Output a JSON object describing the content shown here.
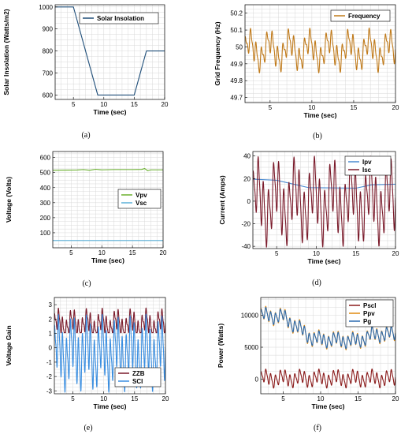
{
  "chart_data": [
    {
      "id": "a",
      "type": "line",
      "caption": "(a)",
      "xlabel": "Time (sec)",
      "ylabel": "Solar Insolation (Watts/m2)",
      "xlim": [
        2,
        20
      ],
      "ylim": [
        580,
        1010
      ],
      "xticks": [
        5,
        10,
        15,
        20
      ],
      "yticks": [
        600,
        700,
        800,
        900,
        1000
      ],
      "grid": true,
      "legend": "top-right",
      "series": [
        {
          "name": "Solar Insolation",
          "color": "#1f4e79",
          "x": [
            2,
            5,
            9,
            15,
            17,
            20
          ],
          "y": [
            1000,
            1000,
            600,
            600,
            800,
            800
          ]
        }
      ]
    },
    {
      "id": "b",
      "type": "line",
      "caption": "(b)",
      "xlabel": "Time (sec)",
      "ylabel": "Grid Frequency (Hz)",
      "xlim": [
        2,
        20
      ],
      "ylim": [
        49.67,
        50.25
      ],
      "xticks": [
        5,
        10,
        15,
        20
      ],
      "yticks": [
        49.7,
        49.8,
        49.9,
        50,
        50.1,
        50.2
      ],
      "grid": true,
      "legend": "top-right",
      "series": [
        {
          "name": "Frequency",
          "color": "#c07a1a",
          "signal": {
            "offset": 49.98,
            "components": [
              [
                0.06,
                1.55,
                0.3
              ],
              [
                0.06,
                0.42,
                1.1
              ],
              [
                0.025,
                3.1,
                0.7
              ]
            ]
          }
        }
      ]
    },
    {
      "id": "c",
      "type": "line",
      "caption": "(c)",
      "xlabel": "Time (sec)",
      "ylabel": "Voltage (Volts)",
      "xlim": [
        2,
        20
      ],
      "ylim": [
        0,
        640
      ],
      "xticks": [
        5,
        10,
        15,
        20
      ],
      "yticks": [
        100,
        200,
        300,
        400,
        500,
        600
      ],
      "grid": true,
      "legend": "center-right",
      "series": [
        {
          "name": "Vpv",
          "color": "#6ab02e",
          "x": [
            2,
            6,
            7,
            8,
            9,
            10,
            12,
            15,
            16.5,
            17,
            17.5,
            18,
            20
          ],
          "y": [
            515,
            517,
            520,
            515,
            522,
            518,
            520,
            520,
            521,
            527,
            512,
            518,
            518
          ]
        },
        {
          "name": "Vsc",
          "color": "#5ab0d8",
          "x": [
            2,
            20
          ],
          "y": [
            48,
            48
          ]
        }
      ]
    },
    {
      "id": "d",
      "type": "line",
      "caption": "(d)",
      "xlabel": "Time (sec)",
      "ylabel": "Current (Amps)",
      "xlim": [
        2,
        20
      ],
      "ylim": [
        -42,
        44
      ],
      "xticks": [
        5,
        10,
        15,
        20
      ],
      "yticks": [
        -40,
        -20,
        0,
        20,
        40
      ],
      "grid": true,
      "legend": "top-right",
      "series": [
        {
          "name": "Ipv",
          "color": "#4a8ad0",
          "x": [
            2,
            5,
            9,
            15,
            17,
            20
          ],
          "y": [
            19.5,
            18.5,
            12,
            11.5,
            14.5,
            15
          ]
        },
        {
          "name": "Isc",
          "color": "#7a1a2a",
          "signal": {
            "offset": 0,
            "components": [
              [
                22,
                1.55,
                0.3
              ],
              [
                16,
                0.42,
                1.1
              ],
              [
                6,
                3.1,
                0.7
              ]
            ]
          }
        }
      ]
    },
    {
      "id": "e",
      "type": "line",
      "caption": "(e)",
      "xlabel": "Time (sec)",
      "ylabel": "Voltage Gain",
      "xlim": [
        2,
        20
      ],
      "ylim": [
        -3.2,
        3.5
      ],
      "xticks": [
        5,
        10,
        15,
        20
      ],
      "yticks": [
        -3,
        -2,
        -1,
        0,
        1,
        2,
        3
      ],
      "grid": true,
      "legend": "bottom-right",
      "series": [
        {
          "name": "ZZB",
          "color": "#7a1a2a",
          "signal": {
            "offset": 1.6,
            "components": [
              [
                0.6,
                1.55,
                0.3
              ],
              [
                0.45,
                0.42,
                1.1
              ],
              [
                0.25,
                3.1,
                0.7
              ]
            ],
            "floor": 1.05
          }
        },
        {
          "name": "SCI",
          "color": "#3a8ee0",
          "signal": {
            "offset": -0.35,
            "components": [
              [
                1.6,
                1.55,
                0.3
              ],
              [
                0.9,
                0.42,
                1.1
              ],
              [
                0.5,
                3.1,
                0.7
              ]
            ]
          }
        }
      ]
    },
    {
      "id": "f",
      "type": "line",
      "caption": "(f)",
      "xlabel": "Time (sec)",
      "ylabel": "Power (Watts)",
      "xlim": [
        2,
        20
      ],
      "ylim": [
        -2300,
        12800
      ],
      "xticks": [
        5,
        10,
        15,
        20
      ],
      "yticks": [
        0,
        5000,
        10000
      ],
      "grid": true,
      "legend": "top-right",
      "series": [
        {
          "name": "Pscl",
          "color": "#8a1a1a",
          "signal": {
            "offset": 100,
            "components": [
              [
                900,
                1.55,
                0.3
              ],
              [
                500,
                0.42,
                1.1
              ],
              [
                250,
                3.1,
                0.7
              ]
            ]
          }
        },
        {
          "name": "Ppv",
          "color": "#e08a10",
          "base": {
            "x": [
              2,
              5,
              9,
              15,
              17,
              20
            ],
            "y": [
              10000,
              9800,
              6300,
              6000,
              7000,
              7100
            ]
          },
          "signal": {
            "offset": 0,
            "components": [
              [
                900,
                1.55,
                0.3
              ],
              [
                500,
                0.42,
                1.1
              ],
              [
                250,
                3.1,
                0.7
              ]
            ]
          }
        },
        {
          "name": "Pg",
          "color": "#2a6ab0",
          "base": {
            "x": [
              2,
              5,
              9,
              15,
              17,
              20
            ],
            "y": [
              10000,
              9800,
              6300,
              6000,
              7000,
              7100
            ]
          },
          "signal": {
            "offset": 0,
            "components": [
              [
                800,
                1.55,
                0.3
              ],
              [
                450,
                0.42,
                1.1
              ],
              [
                200,
                3.1,
                0.7
              ]
            ]
          }
        }
      ]
    }
  ]
}
